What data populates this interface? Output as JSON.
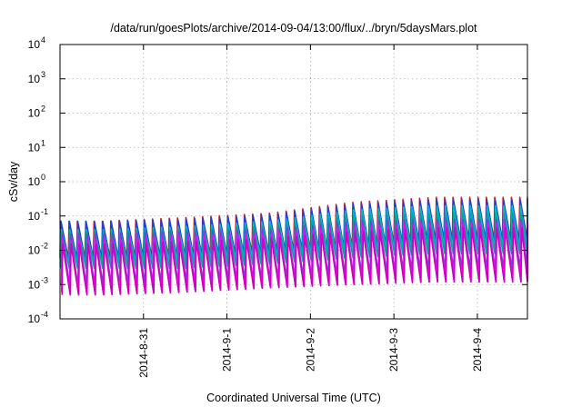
{
  "chart_data": {
    "type": "line",
    "title": "/data/run/goesPlots/archive/2014-09-04/13:00/flux/../bryn/5daysMars.plot",
    "xlabel": "Coordinated Universal Time (UTC)",
    "ylabel": "cSv/day",
    "y_scale": "log",
    "ylim": [
      0.0001,
      10000
    ],
    "xlim_days_from_2014_08_30": [
      0,
      5.6
    ],
    "grid": true,
    "y_ticks": [
      {
        "base": "10",
        "exp": "-4",
        "value": 0.0001
      },
      {
        "base": "10",
        "exp": "-3",
        "value": 0.001
      },
      {
        "base": "10",
        "exp": "-2",
        "value": 0.01
      },
      {
        "base": "10",
        "exp": "-1",
        "value": 0.1
      },
      {
        "base": "10",
        "exp": "0",
        "value": 1
      },
      {
        "base": "10",
        "exp": "1",
        "value": 10
      },
      {
        "base": "10",
        "exp": "2",
        "value": 100
      },
      {
        "base": "10",
        "exp": "3",
        "value": 1000
      },
      {
        "base": "10",
        "exp": "4",
        "value": 10000
      }
    ],
    "x_ticks": [
      {
        "label": "2014-8-31",
        "day": 1
      },
      {
        "label": "2014-9-1",
        "day": 2
      },
      {
        "label": "2014-9-2",
        "day": 3
      },
      {
        "label": "2014-9-3",
        "day": 4
      },
      {
        "label": "2014-9-4",
        "day": 5
      }
    ],
    "sawtooth_period_days": 0.1,
    "series": [
      {
        "color": "#e41a1c",
        "peak": [
          0.07,
          0.09,
          0.12,
          0.25,
          0.35
        ],
        "trough": [
          0.006,
          0.007,
          0.009,
          0.012,
          0.02
        ]
      },
      {
        "color": "#1f3fd8",
        "peak": [
          0.07,
          0.08,
          0.11,
          0.22,
          0.3
        ],
        "trough": [
          0.005,
          0.006,
          0.008,
          0.011,
          0.018
        ]
      },
      {
        "color": "#00b8c8",
        "peak": [
          0.04,
          0.05,
          0.07,
          0.15,
          0.2
        ],
        "trough": [
          0.004,
          0.005,
          0.006,
          0.009,
          0.012
        ]
      },
      {
        "color": "#00a89a",
        "peak": [
          0.035,
          0.04,
          0.05,
          0.1,
          0.12
        ],
        "trough": [
          0.003,
          0.003,
          0.004,
          0.006,
          0.008
        ]
      },
      {
        "color": "#7a3fd0",
        "peak": [
          0.03,
          0.035,
          0.04,
          0.07,
          0.08
        ],
        "trough": [
          0.001,
          0.0012,
          0.0015,
          0.002,
          0.003
        ]
      },
      {
        "color": "#ff00ff",
        "peak": [
          0.02,
          0.025,
          0.03,
          0.05,
          0.06
        ],
        "trough": [
          0.0006,
          0.0007,
          0.0009,
          0.0012,
          0.0015
        ]
      },
      {
        "color": "#d000c0",
        "peak": [
          0.015,
          0.018,
          0.022,
          0.035,
          0.045
        ],
        "trough": [
          0.0005,
          0.0006,
          0.0008,
          0.001,
          0.0012
        ]
      }
    ]
  }
}
